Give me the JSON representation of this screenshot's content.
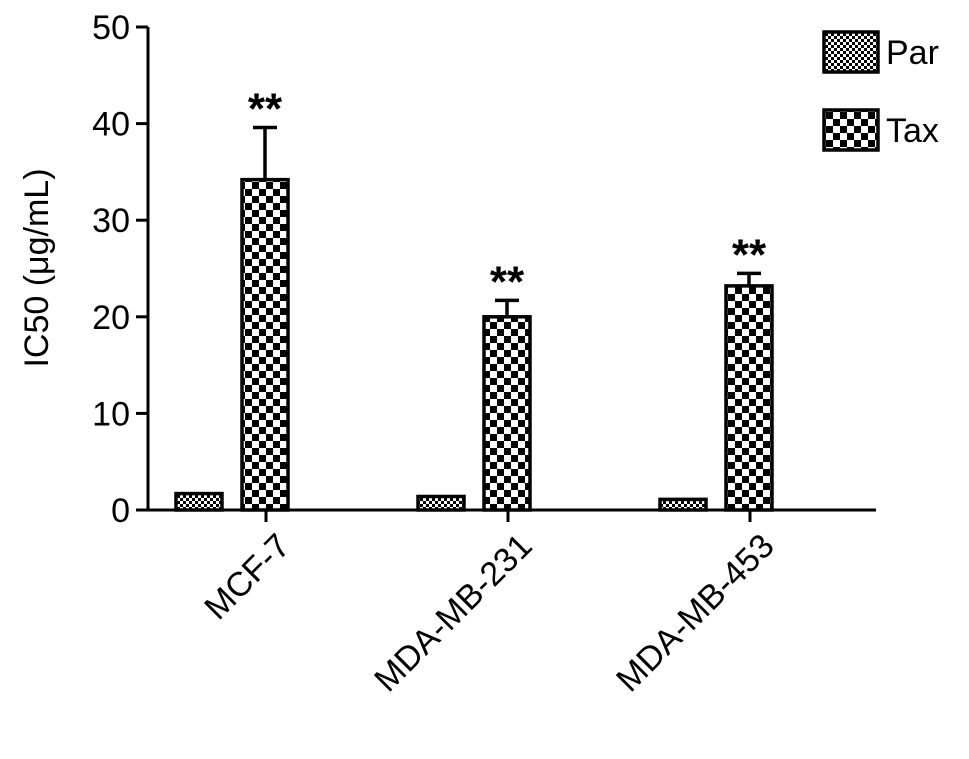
{
  "chart_data": {
    "type": "bar",
    "title": "",
    "xlabel": "",
    "ylabel": "IC50 (μg/mL)",
    "ylim": [
      0,
      50
    ],
    "yticks": [
      0,
      10,
      20,
      30,
      40,
      50
    ],
    "categories": [
      "MCF-7",
      "MDA-MB-231",
      "MDA-MB-453"
    ],
    "series": [
      {
        "name": "Par",
        "values": [
          1.7,
          1.4,
          1.1
        ],
        "errors": [
          0.0,
          0.0,
          0.0
        ],
        "pattern": "fine-checker",
        "annotations": [
          "",
          "",
          ""
        ]
      },
      {
        "name": "Tax",
        "values": [
          34.2,
          20.0,
          23.2
        ],
        "errors": [
          5.4,
          1.7,
          1.3
        ],
        "pattern": "coarse-checker",
        "annotations": [
          "**",
          "**",
          "**"
        ]
      }
    ],
    "legend_position": "top-right",
    "grid": false,
    "colors": {
      "ink": "#000000",
      "fill": "#ffffff"
    }
  }
}
